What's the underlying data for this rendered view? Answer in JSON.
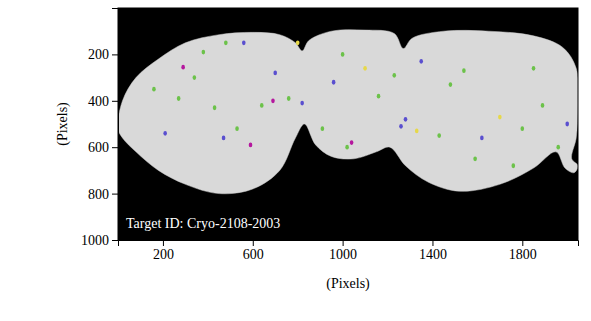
{
  "chart_data": {
    "type": "scatter",
    "x_label": "(Pixels)",
    "y_label": "(Pixels)",
    "annotation": "Target ID: Cryo-2108-2003",
    "xlim": [
      0,
      2048
    ],
    "ylim": [
      0,
      1000
    ],
    "xticks": [
      200,
      600,
      1000,
      1400,
      1800
    ],
    "yticks": [
      200,
      400,
      600,
      800,
      1000
    ],
    "grid": false,
    "mask": {
      "x": [
        0,
        20,
        80,
        180,
        300,
        450,
        600,
        720,
        790,
        820,
        850,
        950,
        1100,
        1230,
        1270,
        1310,
        1450,
        1650,
        1850,
        1980,
        2040,
        2048,
        2040,
        2020,
        2048,
        2030,
        1990,
        1950,
        1850,
        1700,
        1520,
        1380,
        1280,
        1210,
        1150,
        1050,
        950,
        880,
        830,
        790,
        720,
        600,
        450,
        300,
        180,
        80,
        20
      ],
      "y": [
        520,
        400,
        300,
        220,
        150,
        115,
        105,
        115,
        150,
        185,
        140,
        100,
        95,
        110,
        175,
        130,
        100,
        100,
        120,
        170,
        260,
        420,
        560,
        650,
        680,
        710,
        690,
        620,
        690,
        760,
        790,
        750,
        680,
        600,
        620,
        650,
        640,
        590,
        500,
        560,
        700,
        780,
        800,
        760,
        700,
        620,
        560
      ]
    },
    "x": [
      160,
      210,
      270,
      340,
      290,
      480,
      560,
      430,
      470,
      530,
      590,
      640,
      690,
      760,
      800,
      820,
      910,
      960,
      1000,
      1040,
      1020,
      1100,
      1160,
      1230,
      1260,
      1280,
      1330,
      1350,
      1430,
      1480,
      1540,
      1590,
      1620,
      1700,
      1760,
      1800,
      1850,
      1890,
      1960,
      2000,
      700,
      380
    ],
    "values": [
      350,
      540,
      390,
      300,
      255,
      150,
      150,
      430,
      560,
      520,
      590,
      420,
      400,
      390,
      150,
      410,
      520,
      320,
      200,
      580,
      600,
      260,
      380,
      290,
      510,
      480,
      530,
      230,
      550,
      330,
      270,
      650,
      560,
      470,
      680,
      520,
      260,
      420,
      600,
      500,
      280,
      190
    ],
    "colors": [
      "#6cc24a",
      "#5a4fcf",
      "#6cc24a",
      "#6cc24a",
      "#b5179e",
      "#6cc24a",
      "#5a4fcf",
      "#6cc24a",
      "#5a4fcf",
      "#6cc24a",
      "#b5179e",
      "#6cc24a",
      "#b5179e",
      "#6cc24a",
      "#e6d84a",
      "#5a4fcf",
      "#6cc24a",
      "#5a4fcf",
      "#6cc24a",
      "#b5179e",
      "#6cc24a",
      "#e6d84a",
      "#6cc24a",
      "#6cc24a",
      "#5a4fcf",
      "#5a4fcf",
      "#e6d84a",
      "#5a4fcf",
      "#6cc24a",
      "#6cc24a",
      "#6cc24a",
      "#6cc24a",
      "#5a4fcf",
      "#e6d84a",
      "#6cc24a",
      "#6cc24a",
      "#6cc24a",
      "#6cc24a",
      "#6cc24a",
      "#5a4fcf",
      "#5a4fcf",
      "#6cc24a"
    ]
  }
}
